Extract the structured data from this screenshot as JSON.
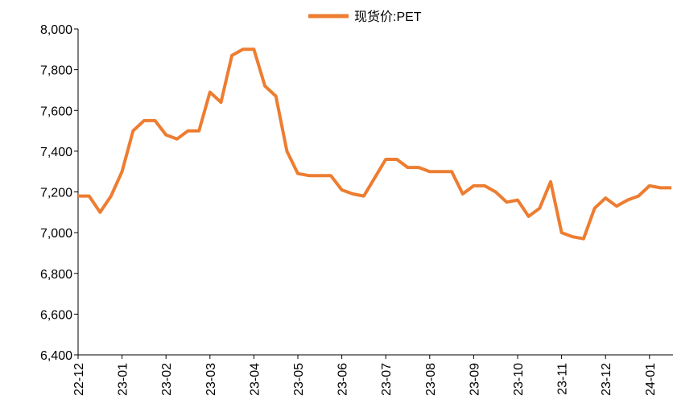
{
  "chart_data": {
    "type": "line",
    "categories": [
      "22-12",
      null,
      null,
      null,
      "23-01",
      null,
      null,
      null,
      "23-02",
      null,
      null,
      null,
      "23-03",
      null,
      null,
      null,
      "23-04",
      null,
      null,
      null,
      "23-05",
      null,
      null,
      null,
      "23-06",
      null,
      null,
      null,
      "23-07",
      null,
      null,
      null,
      "23-08",
      null,
      null,
      null,
      "23-09",
      null,
      null,
      null,
      "23-10",
      null,
      null,
      null,
      "23-11",
      null,
      null,
      null,
      "23-12",
      null,
      null,
      null,
      "24-01",
      null,
      null
    ],
    "series": [
      {
        "name": "现货价:PET",
        "color": "#ED7D31",
        "values": [
          7180,
          7180,
          7100,
          7180,
          7300,
          7500,
          7550,
          7550,
          7480,
          7460,
          7500,
          7500,
          7690,
          7640,
          7870,
          7900,
          7900,
          7720,
          7670,
          7400,
          7290,
          7280,
          7280,
          7280,
          7210,
          7190,
          7180,
          7270,
          7360,
          7360,
          7320,
          7320,
          7300,
          7300,
          7300,
          7190,
          7230,
          7230,
          7200,
          7150,
          7160,
          7080,
          7120,
          7250,
          7000,
          6980,
          6970,
          7120,
          7170,
          7130,
          7160,
          7180,
          7230,
          7220,
          7220
        ]
      }
    ],
    "ylim": [
      6400,
      8000
    ],
    "yticks": [
      {
        "value": 6400,
        "label": "6,400"
      },
      {
        "value": 6600,
        "label": "6,600"
      },
      {
        "value": 6800,
        "label": "6,800"
      },
      {
        "value": 7000,
        "label": "7,000"
      },
      {
        "value": 7200,
        "label": "7,200"
      },
      {
        "value": 7400,
        "label": "7,400"
      },
      {
        "value": 7600,
        "label": "7,600"
      },
      {
        "value": 7800,
        "label": "7,800"
      },
      {
        "value": 8000,
        "label": "8,000"
      }
    ],
    "grid": false,
    "legend": "top"
  }
}
